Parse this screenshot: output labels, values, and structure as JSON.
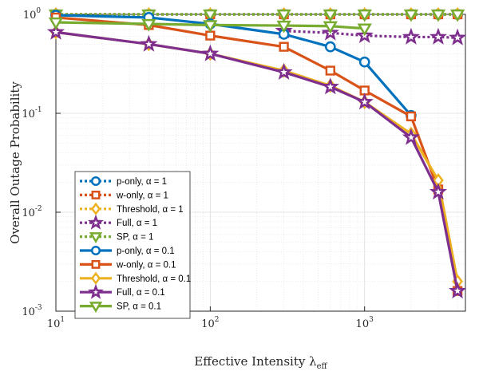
{
  "chart_data": {
    "type": "line",
    "xscale": "log",
    "yscale": "log",
    "xlim": [
      10,
      4500
    ],
    "ylim": [
      0.001,
      1
    ],
    "xlabel": "Effective Intensity λeff",
    "ylabel": "Overall Outage Probability",
    "xticks": [
      "10",
      "10",
      "10"
    ],
    "xtick_exps": [
      "1",
      "2",
      "3"
    ],
    "yticks": [
      "10",
      "10",
      "10",
      "10"
    ],
    "ytick_exps": [
      "-3",
      "-2",
      "-1",
      "0"
    ],
    "grid": true,
    "legend_position": "lower-left",
    "series": [
      {
        "name": "p-only, α = 1",
        "style": "dotted",
        "marker": "circle",
        "color": "#0072BD",
        "x": [
          10,
          40,
          100,
          300,
          600,
          1000,
          2000,
          3000,
          4000
        ],
        "y": [
          1,
          1,
          1,
          1,
          1,
          1,
          1,
          1,
          1
        ]
      },
      {
        "name": "w-only, α = 1",
        "style": "dotted",
        "marker": "square",
        "color": "#D95319",
        "x": [
          10,
          40,
          100,
          300,
          600,
          1000,
          2000,
          3000,
          4000
        ],
        "y": [
          1,
          1,
          1,
          1,
          1,
          1,
          1,
          1,
          1
        ]
      },
      {
        "name": "Threshold, α = 1",
        "style": "dotted",
        "marker": "diamond",
        "color": "#EDB120",
        "x": [
          10,
          40,
          100,
          300,
          600,
          1000,
          2000,
          3000,
          4000
        ],
        "y": [
          1,
          1,
          1,
          1,
          1,
          1,
          1,
          1,
          1
        ]
      },
      {
        "name": "Full, α = 1",
        "style": "dotted",
        "marker": "star",
        "color": "#7E2F8E",
        "x": [
          300,
          600,
          1000,
          2000,
          3000,
          4000
        ],
        "y": [
          0.68,
          0.65,
          0.61,
          0.59,
          0.59,
          0.58
        ]
      },
      {
        "name": "SP, α = 1",
        "style": "dotted",
        "marker": "triangle-down",
        "color": "#77AC30",
        "x": [
          10,
          40,
          100,
          300,
          600,
          1000,
          2000,
          3000,
          4000
        ],
        "y": [
          1,
          1,
          1,
          1,
          1,
          1,
          1,
          1,
          1
        ]
      },
      {
        "name": "p-only, α = 0.1",
        "style": "solid",
        "marker": "circle",
        "color": "#0072BD",
        "x": [
          10,
          40,
          100,
          300,
          600,
          1000,
          2000
        ],
        "y": [
          0.98,
          0.93,
          0.8,
          0.63,
          0.47,
          0.33,
          0.095
        ]
      },
      {
        "name": "w-only, α = 0.1",
        "style": "solid",
        "marker": "square",
        "color": "#D95319",
        "x": [
          10,
          40,
          100,
          300,
          600,
          1000,
          2000,
          3000,
          4000
        ],
        "y": [
          0.93,
          0.78,
          0.61,
          0.47,
          0.27,
          0.17,
          0.093,
          0.017,
          0.0016
        ]
      },
      {
        "name": "Threshold, α = 0.1",
        "style": "solid",
        "marker": "diamond",
        "color": "#EDB120",
        "x": [
          10,
          40,
          100,
          300,
          600,
          1000,
          2000,
          3000,
          4000
        ],
        "y": [
          0.66,
          0.5,
          0.4,
          0.27,
          0.19,
          0.13,
          0.062,
          0.021,
          0.002
        ]
      },
      {
        "name": "Full, α = 0.1",
        "style": "solid",
        "marker": "star",
        "color": "#7E2F8E",
        "x": [
          10,
          40,
          100,
          300,
          600,
          1000,
          2000,
          3000,
          4000
        ],
        "y": [
          0.66,
          0.5,
          0.4,
          0.26,
          0.185,
          0.13,
          0.057,
          0.016,
          0.0016
        ]
      },
      {
        "name": "SP, α = 0.1",
        "style": "solid",
        "marker": "triangle-down",
        "color": "#77AC30",
        "x": [
          10,
          40,
          100,
          300,
          600,
          1000
        ],
        "y": [
          0.83,
          0.8,
          0.78,
          0.77,
          0.76,
          0.72
        ]
      }
    ]
  }
}
